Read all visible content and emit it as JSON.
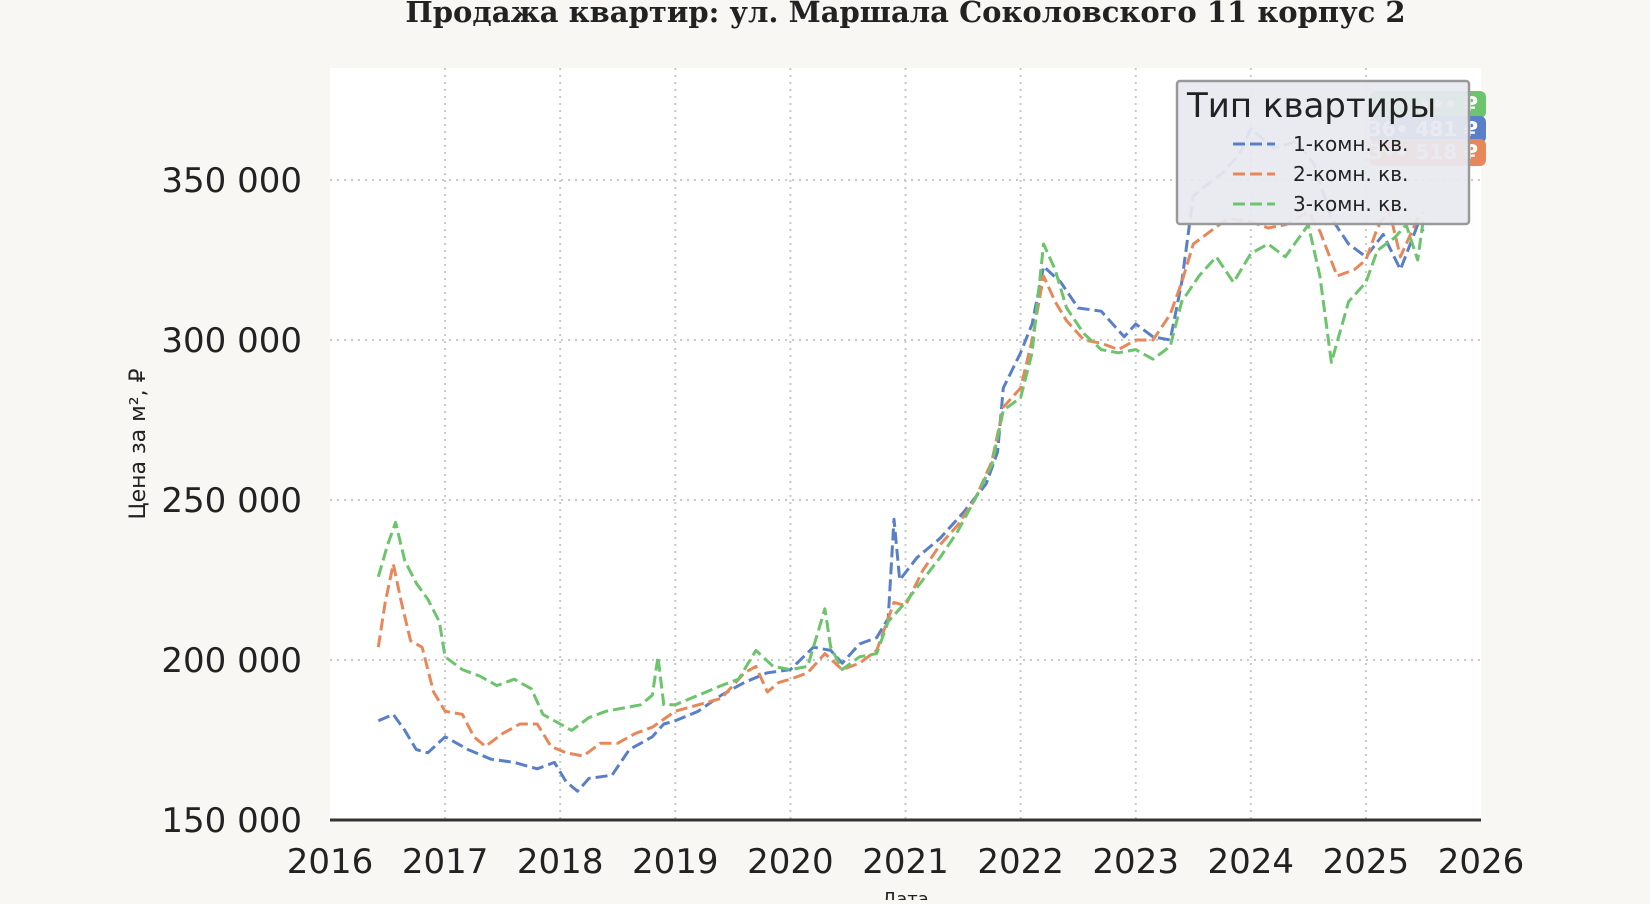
{
  "chart_data": {
    "type": "line",
    "title": "Продажа квартир: ул. Маршала Соколовского 11 корпус 2",
    "xlabel": "Дата",
    "ylabel": "Цена за м², ₽",
    "xlim": [
      2016,
      2026
    ],
    "ylim": [
      150000,
      385000
    ],
    "x_ticks": [
      "2016",
      "2017",
      "2018",
      "2019",
      "2020",
      "2021",
      "2022",
      "2023",
      "2024",
      "2025",
      "2026"
    ],
    "y_ticks": [
      "150 000",
      "200 000",
      "250 000",
      "300 000",
      "350 000"
    ],
    "y_tick_values": [
      150000,
      200000,
      250000,
      300000,
      350000
    ],
    "grid": true,
    "line_style": "dashed",
    "legend": {
      "title": "Тип квартиры",
      "placement": "top-right"
    },
    "series": [
      {
        "name": "1-комн. кв.",
        "color": "#5a7fc9",
        "end_label": "36• 481 ₽",
        "points": [
          [
            2016.42,
            181000
          ],
          [
            2016.55,
            183000
          ],
          [
            2016.65,
            178000
          ],
          [
            2016.75,
            172000
          ],
          [
            2016.85,
            171000
          ],
          [
            2017.0,
            176000
          ],
          [
            2017.2,
            172000
          ],
          [
            2017.4,
            169000
          ],
          [
            2017.6,
            168000
          ],
          [
            2017.8,
            166000
          ],
          [
            2017.95,
            168000
          ],
          [
            2018.05,
            162000
          ],
          [
            2018.15,
            159000
          ],
          [
            2018.25,
            163000
          ],
          [
            2018.45,
            164000
          ],
          [
            2018.6,
            172000
          ],
          [
            2018.8,
            176000
          ],
          [
            2018.9,
            180000
          ],
          [
            2019.0,
            181000
          ],
          [
            2019.2,
            184000
          ],
          [
            2019.4,
            189000
          ],
          [
            2019.6,
            193000
          ],
          [
            2019.8,
            196000
          ],
          [
            2020.0,
            197000
          ],
          [
            2020.2,
            204000
          ],
          [
            2020.35,
            203000
          ],
          [
            2020.45,
            199000
          ],
          [
            2020.6,
            205000
          ],
          [
            2020.75,
            207000
          ],
          [
            2020.85,
            213000
          ],
          [
            2020.9,
            244000
          ],
          [
            2020.95,
            225000
          ],
          [
            2021.1,
            232000
          ],
          [
            2021.3,
            238000
          ],
          [
            2021.5,
            246000
          ],
          [
            2021.7,
            255000
          ],
          [
            2021.8,
            265000
          ],
          [
            2021.85,
            285000
          ],
          [
            2022.0,
            296000
          ],
          [
            2022.1,
            305000
          ],
          [
            2022.2,
            323000
          ],
          [
            2022.35,
            318000
          ],
          [
            2022.5,
            310000
          ],
          [
            2022.7,
            309000
          ],
          [
            2022.9,
            301000
          ],
          [
            2023.0,
            305000
          ],
          [
            2023.15,
            301000
          ],
          [
            2023.3,
            300000
          ],
          [
            2023.4,
            318000
          ],
          [
            2023.5,
            345000
          ],
          [
            2023.6,
            348000
          ],
          [
            2023.75,
            352000
          ],
          [
            2023.9,
            358000
          ],
          [
            2024.0,
            366000
          ],
          [
            2024.2,
            360000
          ],
          [
            2024.4,
            362000
          ],
          [
            2024.55,
            355000
          ],
          [
            2024.7,
            338000
          ],
          [
            2024.85,
            330000
          ],
          [
            2025.0,
            326000
          ],
          [
            2025.15,
            333000
          ],
          [
            2025.3,
            322000
          ],
          [
            2025.45,
            336000
          ],
          [
            2025.5,
            334000
          ]
        ]
      },
      {
        "name": "2-комн. кв.",
        "color": "#e8885a",
        "end_label": "3•• 518 ₽",
        "points": [
          [
            2016.42,
            204000
          ],
          [
            2016.48,
            218000
          ],
          [
            2016.55,
            230000
          ],
          [
            2016.62,
            218000
          ],
          [
            2016.7,
            206000
          ],
          [
            2016.8,
            204000
          ],
          [
            2016.9,
            190000
          ],
          [
            2017.0,
            184000
          ],
          [
            2017.15,
            183000
          ],
          [
            2017.25,
            176000
          ],
          [
            2017.35,
            173000
          ],
          [
            2017.5,
            177000
          ],
          [
            2017.65,
            180000
          ],
          [
            2017.8,
            180000
          ],
          [
            2017.92,
            173000
          ],
          [
            2018.05,
            171000
          ],
          [
            2018.2,
            170000
          ],
          [
            2018.35,
            174000
          ],
          [
            2018.5,
            174000
          ],
          [
            2018.65,
            177000
          ],
          [
            2018.8,
            179000
          ],
          [
            2019.0,
            184000
          ],
          [
            2019.2,
            186000
          ],
          [
            2019.4,
            188000
          ],
          [
            2019.6,
            196000
          ],
          [
            2019.7,
            198000
          ],
          [
            2019.8,
            190000
          ],
          [
            2019.9,
            193000
          ],
          [
            2020.0,
            194000
          ],
          [
            2020.15,
            196000
          ],
          [
            2020.3,
            202000
          ],
          [
            2020.45,
            197000
          ],
          [
            2020.6,
            199000
          ],
          [
            2020.75,
            203000
          ],
          [
            2020.9,
            218000
          ],
          [
            2021.0,
            217000
          ],
          [
            2021.15,
            228000
          ],
          [
            2021.3,
            236000
          ],
          [
            2021.45,
            242000
          ],
          [
            2021.6,
            250000
          ],
          [
            2021.75,
            262000
          ],
          [
            2021.85,
            279000
          ],
          [
            2022.0,
            285000
          ],
          [
            2022.1,
            300000
          ],
          [
            2022.2,
            320000
          ],
          [
            2022.3,
            312000
          ],
          [
            2022.4,
            306000
          ],
          [
            2022.55,
            300000
          ],
          [
            2022.7,
            299000
          ],
          [
            2022.85,
            297000
          ],
          [
            2023.0,
            300000
          ],
          [
            2023.15,
            300000
          ],
          [
            2023.3,
            308000
          ],
          [
            2023.4,
            318000
          ],
          [
            2023.5,
            330000
          ],
          [
            2023.65,
            334000
          ],
          [
            2023.8,
            338000
          ],
          [
            2024.0,
            337000
          ],
          [
            2024.15,
            335000
          ],
          [
            2024.3,
            336000
          ],
          [
            2024.5,
            340000
          ],
          [
            2024.6,
            334000
          ],
          [
            2024.75,
            320000
          ],
          [
            2024.9,
            322000
          ],
          [
            2025.0,
            325000
          ],
          [
            2025.1,
            335000
          ],
          [
            2025.2,
            341000
          ],
          [
            2025.3,
            326000
          ],
          [
            2025.45,
            338000
          ],
          [
            2025.5,
            340000
          ]
        ]
      },
      {
        "name": "3-комн. кв.",
        "color": "#6cc46c",
        "end_label": "••• ••• ₽",
        "points": [
          [
            2016.42,
            226000
          ],
          [
            2016.5,
            236000
          ],
          [
            2016.57,
            243000
          ],
          [
            2016.65,
            231000
          ],
          [
            2016.75,
            224000
          ],
          [
            2016.85,
            219000
          ],
          [
            2016.95,
            212000
          ],
          [
            2017.0,
            201000
          ],
          [
            2017.15,
            197000
          ],
          [
            2017.3,
            195000
          ],
          [
            2017.45,
            192000
          ],
          [
            2017.6,
            194000
          ],
          [
            2017.75,
            191000
          ],
          [
            2017.85,
            183000
          ],
          [
            2018.0,
            180000
          ],
          [
            2018.1,
            178000
          ],
          [
            2018.25,
            182000
          ],
          [
            2018.4,
            184000
          ],
          [
            2018.55,
            185000
          ],
          [
            2018.7,
            186000
          ],
          [
            2018.8,
            189000
          ],
          [
            2018.85,
            201000
          ],
          [
            2018.9,
            186000
          ],
          [
            2019.0,
            186000
          ],
          [
            2019.2,
            189000
          ],
          [
            2019.4,
            192000
          ],
          [
            2019.55,
            194000
          ],
          [
            2019.7,
            203000
          ],
          [
            2019.85,
            198000
          ],
          [
            2020.0,
            197000
          ],
          [
            2020.15,
            198000
          ],
          [
            2020.3,
            216000
          ],
          [
            2020.35,
            204000
          ],
          [
            2020.45,
            197000
          ],
          [
            2020.6,
            201000
          ],
          [
            2020.75,
            202000
          ],
          [
            2020.85,
            212000
          ],
          [
            2021.0,
            218000
          ],
          [
            2021.15,
            225000
          ],
          [
            2021.3,
            232000
          ],
          [
            2021.45,
            240000
          ],
          [
            2021.6,
            250000
          ],
          [
            2021.75,
            261000
          ],
          [
            2021.85,
            278000
          ],
          [
            2022.0,
            282000
          ],
          [
            2022.1,
            296000
          ],
          [
            2022.2,
            330000
          ],
          [
            2022.3,
            322000
          ],
          [
            2022.4,
            310000
          ],
          [
            2022.55,
            302000
          ],
          [
            2022.7,
            297000
          ],
          [
            2022.85,
            296000
          ],
          [
            2023.0,
            297000
          ],
          [
            2023.15,
            294000
          ],
          [
            2023.3,
            298000
          ],
          [
            2023.4,
            312000
          ],
          [
            2023.55,
            320000
          ],
          [
            2023.7,
            326000
          ],
          [
            2023.85,
            318000
          ],
          [
            2024.0,
            327000
          ],
          [
            2024.15,
            330000
          ],
          [
            2024.3,
            326000
          ],
          [
            2024.5,
            336000
          ],
          [
            2024.6,
            320000
          ],
          [
            2024.7,
            293000
          ],
          [
            2024.85,
            312000
          ],
          [
            2025.0,
            318000
          ],
          [
            2025.1,
            328000
          ],
          [
            2025.25,
            332000
          ],
          [
            2025.35,
            336000
          ],
          [
            2025.45,
            325000
          ],
          [
            2025.5,
            338000
          ]
        ]
      }
    ]
  }
}
